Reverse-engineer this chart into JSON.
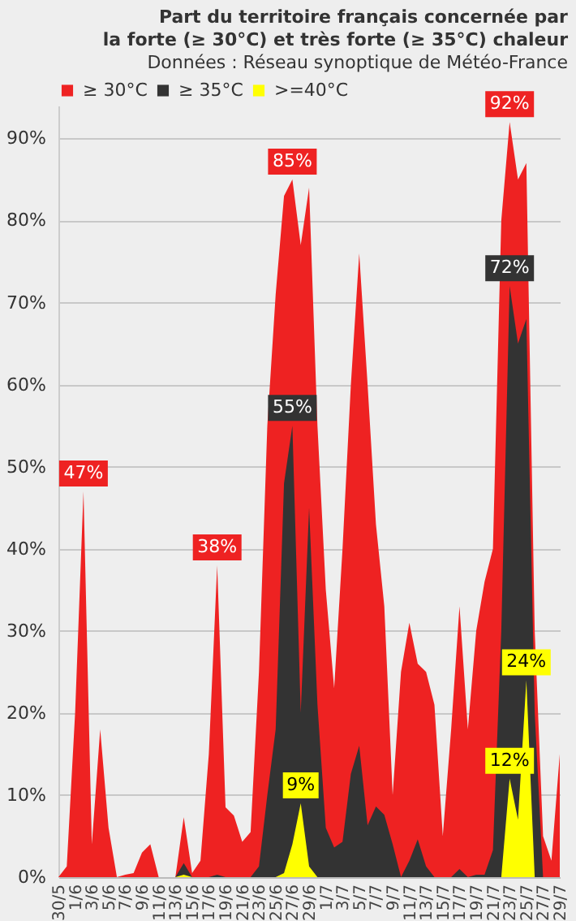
{
  "chart_data": {
    "type": "area",
    "title": "Part du territoire français concernée  par\nla forte (≥ 30°C) et très forte (≥ 35°C) chaleur",
    "subtitle": "Données : Réseau synoptique de Météo-France",
    "categories": [
      "30/5",
      null,
      "1/6",
      null,
      "3/6",
      null,
      "5/6",
      null,
      "7/6",
      null,
      "9/6",
      null,
      "11/6",
      null,
      "13/6",
      null,
      "15/6",
      null,
      "17/6",
      null,
      "19/6",
      null,
      "21/6",
      null,
      "23/6",
      null,
      "25/6",
      null,
      "27/6",
      null,
      "29/6",
      null,
      "1/7",
      null,
      "3/7",
      null,
      "5/7",
      null,
      "7/7",
      null,
      "9/7",
      null,
      "11/7",
      null,
      "13/7",
      null,
      "15/7",
      null,
      "17/7",
      null,
      "19/7",
      null,
      "21/7",
      null,
      "23/7",
      null,
      "25/7",
      null,
      "27/7",
      null,
      "29/7"
    ],
    "series": [
      {
        "name": "≥ 30°C",
        "color": "#ee2222",
        "values": [
          0,
          1.3,
          20,
          47,
          4,
          18,
          6,
          0,
          0.3,
          0.5,
          3,
          4,
          0,
          0,
          0,
          7.3,
          0.5,
          2,
          15,
          38,
          8.5,
          7.5,
          4.3,
          5.5,
          25,
          55,
          71,
          83,
          85,
          77,
          84,
          55,
          35,
          23,
          40,
          60,
          76,
          60,
          43,
          33,
          10,
          25,
          31,
          26,
          25,
          21,
          5,
          18,
          33,
          18,
          30,
          36,
          40,
          80,
          92,
          85,
          87,
          30,
          5,
          2,
          15
        ],
        "value_labels": [
          null,
          null,
          null,
          "47%",
          null,
          null,
          null,
          null,
          null,
          null,
          null,
          null,
          null,
          null,
          null,
          null,
          null,
          null,
          null,
          "38%",
          null,
          null,
          null,
          null,
          null,
          null,
          null,
          null,
          "85%",
          null,
          null,
          null,
          null,
          null,
          null,
          null,
          null,
          null,
          null,
          null,
          null,
          null,
          null,
          null,
          null,
          null,
          null,
          null,
          null,
          null,
          null,
          null,
          null,
          null,
          "92%",
          null,
          null,
          null,
          null,
          null,
          null
        ]
      },
      {
        "name": "≥ 35°C",
        "color": "#333333",
        "values": [
          0,
          0,
          0,
          0,
          0,
          0,
          0,
          0,
          0,
          0,
          0,
          0,
          0,
          0,
          0,
          1.7,
          0,
          0,
          0,
          0.3,
          0,
          0,
          0,
          0,
          1.3,
          10,
          18,
          48,
          55,
          20,
          45,
          21,
          6,
          3.6,
          4.3,
          12.6,
          16,
          6.3,
          8.6,
          7.6,
          4,
          0,
          2,
          4.6,
          1.3,
          0,
          0,
          0,
          1,
          0,
          0.3,
          0.3,
          3.3,
          30,
          72,
          65,
          68,
          20,
          0,
          0,
          0
        ],
        "value_labels": [
          null,
          null,
          null,
          null,
          null,
          null,
          null,
          null,
          null,
          null,
          null,
          null,
          null,
          null,
          null,
          null,
          null,
          null,
          null,
          null,
          null,
          null,
          null,
          null,
          null,
          null,
          null,
          null,
          "55%",
          null,
          null,
          null,
          null,
          null,
          null,
          null,
          null,
          null,
          null,
          null,
          null,
          null,
          null,
          null,
          null,
          null,
          null,
          null,
          null,
          null,
          null,
          null,
          null,
          null,
          "72%",
          null,
          null,
          null,
          null,
          null,
          null
        ]
      },
      {
        "name": ">=40°C",
        "color": "#ffff00",
        "values": [
          0,
          0,
          0,
          0,
          0,
          0,
          0,
          0,
          0,
          0,
          0,
          0,
          0,
          0,
          0,
          0.3,
          0,
          0,
          0,
          0,
          0,
          0,
          0,
          0,
          0,
          0,
          0,
          0.5,
          4,
          9,
          1.3,
          0,
          0,
          0,
          0,
          0,
          0,
          0,
          0,
          0,
          0,
          0,
          0,
          0,
          0,
          0,
          0,
          0,
          0,
          0,
          0,
          0,
          0,
          0,
          12,
          7,
          24,
          0,
          0,
          0,
          0
        ],
        "value_labels": [
          null,
          null,
          null,
          null,
          null,
          null,
          null,
          null,
          null,
          null,
          null,
          null,
          null,
          null,
          null,
          null,
          null,
          null,
          null,
          null,
          null,
          null,
          null,
          null,
          null,
          null,
          null,
          null,
          null,
          "9%",
          null,
          null,
          null,
          null,
          null,
          null,
          null,
          null,
          null,
          null,
          null,
          null,
          null,
          null,
          null,
          null,
          null,
          null,
          null,
          null,
          null,
          null,
          null,
          null,
          "12%",
          null,
          "24%",
          null,
          null,
          null,
          null
        ]
      }
    ],
    "ylim": [
      0,
      94
    ],
    "yticks": [
      {
        "value": 0,
        "label": "0%"
      },
      {
        "value": 10,
        "label": "10%"
      },
      {
        "value": 20,
        "label": "20%"
      },
      {
        "value": 30,
        "label": "30%"
      },
      {
        "value": 40,
        "label": "40%"
      },
      {
        "value": 50,
        "label": "50%"
      },
      {
        "value": 60,
        "label": "60%"
      },
      {
        "value": 70,
        "label": "70%"
      },
      {
        "value": 80,
        "label": "80%"
      },
      {
        "value": 90,
        "label": "90%"
      }
    ],
    "grid": "y",
    "legend": "top"
  }
}
